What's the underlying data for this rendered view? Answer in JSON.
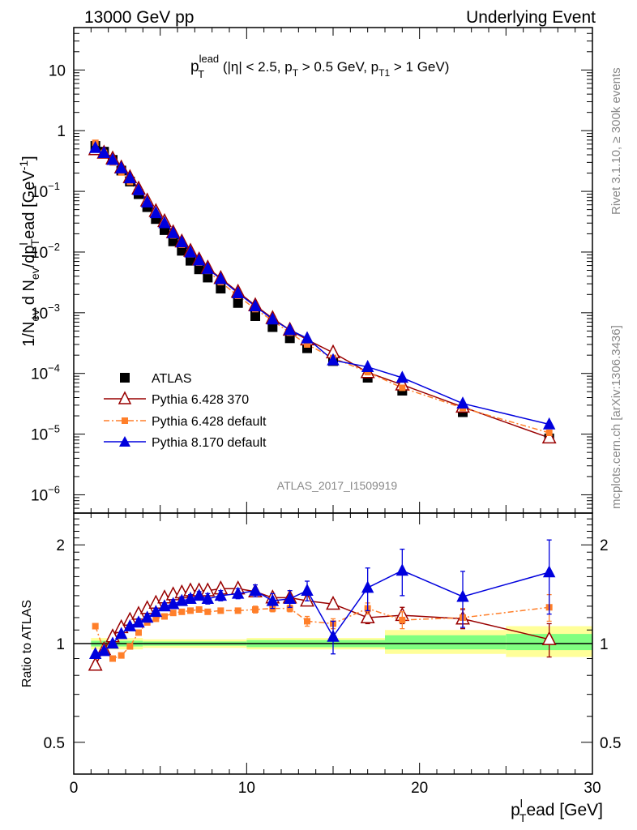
{
  "header": {
    "left": "13000 GeV pp",
    "right": "Underlying Event"
  },
  "plot_title": {
    "p": "p",
    "p_sup": "lead",
    "p_sub": "T",
    "mid1": " (|η| < 2.5, p",
    "sub1": "T",
    "mid2": " > 0.5 GeV, p",
    "sub2": "T1",
    "end": " > 1 GeV)"
  },
  "ylabel_main": {
    "a": "1/N",
    "a_sub": "ev",
    "b": " d N",
    "b_sub": "ev",
    "c": "/dp",
    "c_sub": "T",
    "c_sup": "l",
    "d": "ead [GeV",
    "d_sup": "-1",
    "e": "]"
  },
  "ylabel_ratio": "Ratio to ATLAS",
  "xlabel": {
    "p": "p",
    "sub": "T",
    "sup": "l",
    "rest": "ead [GeV]"
  },
  "watermark": "ATLAS_2017_I1509919",
  "side_right_top": "Rivet 3.1.10, ≥ 300k events",
  "side_right_bottom": "mcplots.cern.ch [arXiv:1306.3436]",
  "legend": [
    {
      "label": "ATLAS"
    },
    {
      "label": "Pythia 6.428 370"
    },
    {
      "label": "Pythia 6.428 default"
    },
    {
      "label": "Pythia 8.170 default"
    }
  ],
  "chart_data": {
    "type": "scatter",
    "x_range": [
      0,
      30
    ],
    "x_ticks": [
      0,
      10,
      20,
      30
    ],
    "main": {
      "yscale": "log",
      "y_range": [
        5e-07,
        50
      ],
      "y_ticks": [
        {
          "v": 10,
          "label": "10"
        },
        {
          "v": 1,
          "label": "1"
        },
        {
          "v": 0.1,
          "label": "10",
          "exp": "−1"
        },
        {
          "v": 0.01,
          "label": "10",
          "exp": "−2"
        },
        {
          "v": 0.001,
          "label": "10",
          "exp": "−3"
        },
        {
          "v": 0.0001,
          "label": "10",
          "exp": "−4"
        },
        {
          "v": 1e-05,
          "label": "10",
          "exp": "−5"
        },
        {
          "v": 1e-06,
          "label": "10",
          "exp": "−6"
        }
      ]
    },
    "ratio": {
      "yscale": "log",
      "y_range": [
        0.4,
        2.5
      ],
      "y_ticks": [
        {
          "v": 0.5,
          "label": "0.5"
        },
        {
          "v": 1,
          "label": "1"
        },
        {
          "v": 2,
          "label": "2"
        }
      ],
      "bands": [
        {
          "x0": 1,
          "x1": 4,
          "inner": [
            0.98,
            1.02
          ],
          "outer": [
            0.96,
            1.04
          ]
        },
        {
          "x0": 4,
          "x1": 10,
          "inner": [
            0.985,
            1.015
          ],
          "outer": [
            0.97,
            1.03
          ]
        },
        {
          "x0": 10,
          "x1": 18,
          "inner": [
            0.975,
            1.025
          ],
          "outer": [
            0.96,
            1.04
          ]
        },
        {
          "x0": 18,
          "x1": 25,
          "inner": [
            0.96,
            1.06
          ],
          "outer": [
            0.93,
            1.1
          ]
        },
        {
          "x0": 25,
          "x1": 30,
          "inner": [
            0.955,
            1.07
          ],
          "outer": [
            0.91,
            1.13
          ]
        }
      ]
    },
    "series": [
      {
        "name": "ATLAS",
        "color": "#000000",
        "marker": "square",
        "x": [
          1.25,
          1.75,
          2.25,
          2.75,
          3.25,
          3.75,
          4.25,
          4.75,
          5.25,
          5.75,
          6.25,
          6.75,
          7.25,
          7.75,
          8.5,
          9.5,
          10.5,
          11.5,
          12.5,
          13.5,
          15,
          17,
          19,
          22.5,
          27.5
        ],
        "y": [
          0.56,
          0.45,
          0.33,
          0.22,
          0.145,
          0.09,
          0.055,
          0.035,
          0.023,
          0.015,
          0.0105,
          0.0072,
          0.0052,
          0.0038,
          0.0025,
          0.00145,
          0.00088,
          0.00058,
          0.00038,
          0.00026,
          0.00016,
          8.5e-05,
          5.2e-05,
          2.3e-05,
          8.5e-06
        ]
      },
      {
        "name": "Pythia 6.428 370",
        "color": "#990000",
        "marker": "open-triangle",
        "line": "solid",
        "x": [
          1.25,
          1.75,
          2.25,
          2.75,
          3.25,
          3.75,
          4.25,
          4.75,
          5.25,
          5.75,
          6.25,
          6.75,
          7.25,
          7.75,
          8.5,
          9.5,
          10.5,
          11.5,
          12.5,
          13.5,
          15,
          17,
          19,
          22.5,
          27.5
        ],
        "y": [
          0.49,
          0.43,
          0.345,
          0.245,
          0.17,
          0.11,
          0.07,
          0.047,
          0.032,
          0.021,
          0.0148,
          0.0104,
          0.0075,
          0.0055,
          0.0037,
          0.0022,
          0.00132,
          0.00081,
          0.00052,
          0.00036,
          0.00022,
          0.000104,
          6.5e-05,
          2.8e-05,
          8.7e-06
        ],
        "ratio": [
          0.86,
          0.96,
          1.05,
          1.12,
          1.18,
          1.23,
          1.28,
          1.33,
          1.38,
          1.41,
          1.43,
          1.45,
          1.45,
          1.45,
          1.47,
          1.47,
          1.44,
          1.38,
          1.38,
          1.35,
          1.32,
          1.2,
          1.22,
          1.19,
          1.03
        ],
        "ratio_err": [
          0.02,
          0.02,
          0.02,
          0.02,
          0.02,
          0.02,
          0.02,
          0.02,
          0.02,
          0.02,
          0.02,
          0.02,
          0.02,
          0.02,
          0.02,
          0.02,
          0.03,
          0.03,
          0.03,
          0.04,
          0.04,
          0.05,
          0.07,
          0.08,
          0.12
        ]
      },
      {
        "name": "Pythia 6.428 default",
        "color": "#ff7f2a",
        "marker": "square",
        "line": "dashdot",
        "x": [
          1.25,
          1.75,
          2.25,
          2.75,
          3.25,
          3.75,
          4.25,
          4.75,
          5.25,
          5.75,
          6.25,
          6.75,
          7.25,
          7.75,
          8.5,
          9.5,
          10.5,
          11.5,
          12.5,
          13.5,
          15,
          17,
          19,
          22.5,
          27.5
        ],
        "y": [
          0.63,
          0.43,
          0.3,
          0.205,
          0.143,
          0.098,
          0.064,
          0.042,
          0.028,
          0.0188,
          0.0132,
          0.0092,
          0.0067,
          0.0049,
          0.0032,
          0.0019,
          0.00115,
          0.00074,
          0.00047,
          0.0003,
          0.00018,
          0.000105,
          5.8e-05,
          2.7e-05,
          1.05e-05
        ],
        "ratio": [
          1.13,
          0.95,
          0.9,
          0.92,
          0.98,
          1.08,
          1.16,
          1.19,
          1.21,
          1.24,
          1.25,
          1.26,
          1.27,
          1.25,
          1.26,
          1.26,
          1.27,
          1.28,
          1.28,
          1.17,
          1.15,
          1.28,
          1.18,
          1.2,
          1.29
        ],
        "ratio_err": [
          0.02,
          0.02,
          0.02,
          0.02,
          0.02,
          0.02,
          0.02,
          0.02,
          0.02,
          0.02,
          0.02,
          0.02,
          0.02,
          0.02,
          0.02,
          0.02,
          0.03,
          0.03,
          0.03,
          0.04,
          0.04,
          0.05,
          0.07,
          0.08,
          0.12
        ]
      },
      {
        "name": "Pythia 8.170 default",
        "color": "#0000dd",
        "marker": "filled-triangle",
        "line": "solid",
        "x": [
          1.25,
          1.75,
          2.25,
          2.75,
          3.25,
          3.75,
          4.25,
          4.75,
          5.25,
          5.75,
          6.25,
          6.75,
          7.25,
          7.75,
          8.5,
          9.5,
          10.5,
          11.5,
          12.5,
          13.5,
          15,
          17,
          19,
          22.5,
          27.5
        ],
        "y": [
          0.52,
          0.43,
          0.33,
          0.24,
          0.165,
          0.105,
          0.066,
          0.044,
          0.03,
          0.0205,
          0.0145,
          0.0099,
          0.0073,
          0.0053,
          0.0036,
          0.0021,
          0.00128,
          0.00078,
          0.00052,
          0.00038,
          0.000165,
          0.000128,
          8.5e-05,
          3.2e-05,
          1.45e-05
        ],
        "ratio": [
          0.93,
          0.95,
          1.0,
          1.07,
          1.13,
          1.16,
          1.2,
          1.25,
          1.3,
          1.32,
          1.35,
          1.37,
          1.4,
          1.37,
          1.4,
          1.42,
          1.45,
          1.35,
          1.37,
          1.45,
          1.05,
          1.48,
          1.67,
          1.39,
          1.65
        ],
        "ratio_err": [
          0.02,
          0.02,
          0.02,
          0.02,
          0.02,
          0.03,
          0.03,
          0.03,
          0.03,
          0.04,
          0.04,
          0.04,
          0.04,
          0.05,
          0.05,
          0.05,
          0.06,
          0.07,
          0.08,
          0.1,
          0.12,
          0.22,
          0.27,
          0.27,
          0.42
        ]
      }
    ]
  }
}
